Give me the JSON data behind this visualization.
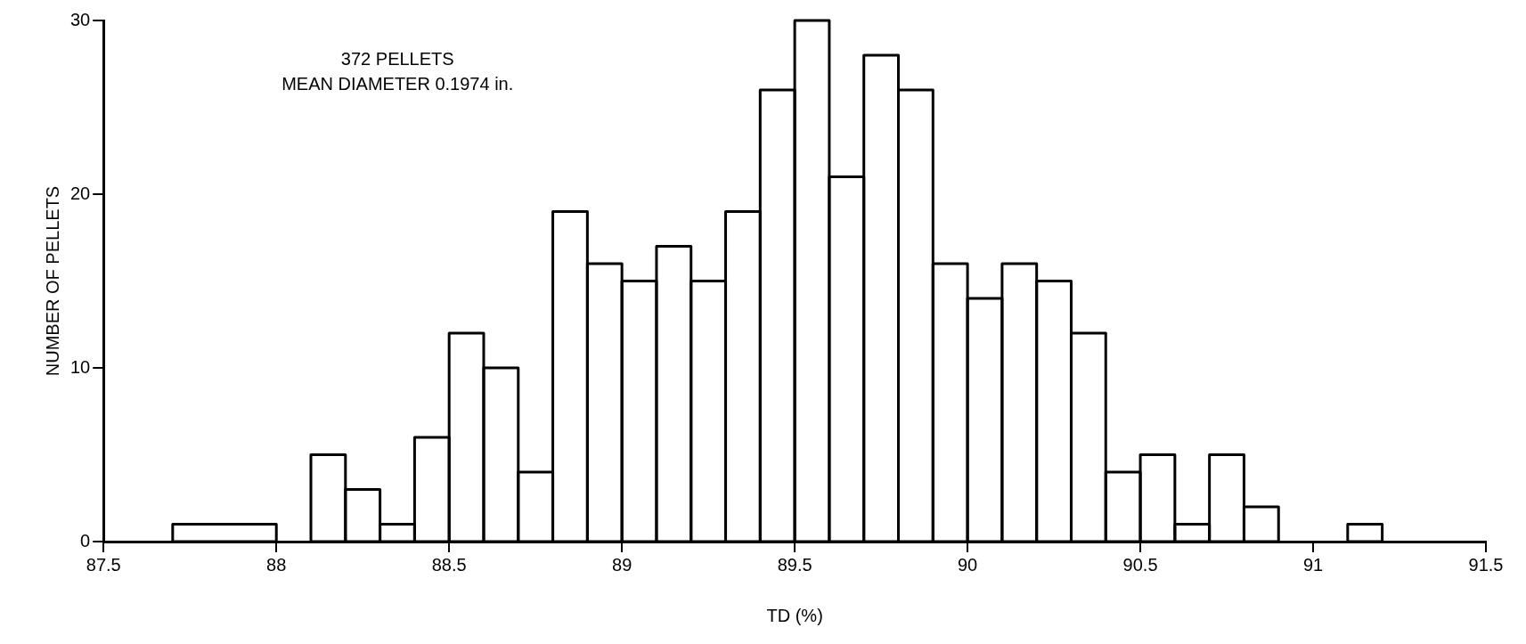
{
  "chart_data": {
    "type": "histogram",
    "xlabel": "TD (%)",
    "ylabel": "NUMBER OF PELLETS",
    "annotations": [
      "372 PELLETS",
      "MEAN DIAMETER 0.1974 in."
    ],
    "bins": [
      87.7,
      88.0,
      88.1,
      88.2,
      88.3,
      88.4,
      88.5,
      88.6,
      88.7,
      88.8,
      88.9,
      89.0,
      89.1,
      89.2,
      89.3,
      89.4,
      89.5,
      89.6,
      89.7,
      89.8,
      89.9,
      90.0,
      90.1,
      90.2,
      90.3,
      90.4,
      90.5,
      90.6,
      90.7,
      90.8,
      90.9,
      91.1,
      91.2
    ],
    "values": [
      1,
      0,
      5,
      3,
      1,
      6,
      12,
      10,
      4,
      19,
      16,
      15,
      17,
      15,
      19,
      26,
      30,
      21,
      28,
      26,
      16,
      14,
      16,
      15,
      12,
      4,
      5,
      1,
      5,
      2,
      0,
      1
    ],
    "color": "#000000",
    "xlim": [
      87.5,
      91.5
    ],
    "xticks": [
      87.5,
      88,
      88.5,
      89,
      89.5,
      90,
      90.5,
      91,
      91.5
    ],
    "ylim": [
      0,
      30
    ],
    "yticks": [
      0,
      10,
      20,
      30
    ],
    "grid": false,
    "legend": false
  }
}
